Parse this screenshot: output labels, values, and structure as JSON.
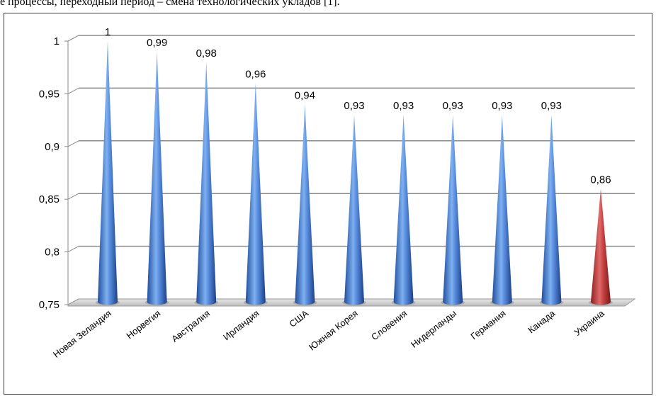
{
  "context_text": "е процессы, переходный период – смена технологических укладов [1].",
  "chart_data": {
    "type": "bar",
    "shape": "cone",
    "categories": [
      "Новая Зеландия",
      "Норвегия",
      "Австралия",
      "Ирландия",
      "США",
      "Южная Корея",
      "Словения",
      "Нидерланды",
      "Германия",
      "Канада",
      "Украина"
    ],
    "values": [
      1,
      0.99,
      0.98,
      0.96,
      0.94,
      0.93,
      0.93,
      0.93,
      0.93,
      0.93,
      0.86
    ],
    "value_labels": [
      "1",
      "0,99",
      "0,98",
      "0,96",
      "0,94",
      "0,93",
      "0,93",
      "0,93",
      "0,93",
      "0,93",
      "0,86"
    ],
    "title": "",
    "xlabel": "",
    "ylabel": "",
    "ylim": [
      0.75,
      1
    ],
    "yticks": [
      0.75,
      0.8,
      0.85,
      0.9,
      0.95,
      1
    ],
    "ytick_labels": [
      "0,75",
      "0,8",
      "0,85",
      "0,9",
      "0,95",
      "1"
    ],
    "grid": true,
    "legend": "none",
    "colors": {
      "default": "#4a7fd4",
      "highlight": "#c0392b"
    },
    "highlight_index": 10
  }
}
